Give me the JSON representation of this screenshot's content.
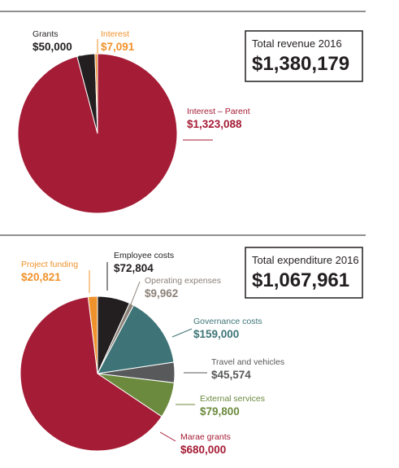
{
  "chart_data": [
    {
      "type": "pie",
      "categories": [
        "Interest – Parent",
        "Grants",
        "Interest"
      ],
      "values": [
        1323088,
        50000,
        7091
      ],
      "value_labels": [
        "$1,323,088",
        "$50,000",
        "$7,091"
      ],
      "colors": [
        "#a51c36",
        "#231f20",
        "#f0922b"
      ],
      "total_title": "Total revenue 2016",
      "total_text": "$1,380,179"
    },
    {
      "type": "pie",
      "categories": [
        "Employee costs",
        "Operating expenses",
        "Governance costs",
        "Travel and vehicles",
        "External services",
        "Marae grants",
        "Project funding"
      ],
      "values": [
        72804,
        9962,
        159000,
        45574,
        79800,
        680000,
        20821
      ],
      "value_labels": [
        "$72,804",
        "$9,962",
        "$159,000",
        "$45,574",
        "$79,800",
        "$680,000",
        "$20,821"
      ],
      "colors": [
        "#231f20",
        "#8b8178",
        "#3e7477",
        "#58595b",
        "#6c8a3e",
        "#a51c36",
        "#f0922b"
      ],
      "total_title": "Total expenditure 2016",
      "total_text": "$1,067,961"
    }
  ]
}
